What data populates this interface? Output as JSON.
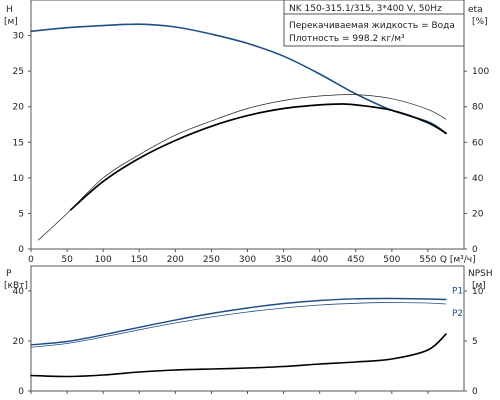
{
  "header": {
    "title": "NK 150-315.1/315, 3*400 V, 50Hz",
    "liquid": "Перекачиваемая жидкость = Вода",
    "density": "Плотность = 998.2 кг/м³"
  },
  "chart_data": [
    {
      "type": "line",
      "panel": "top",
      "xlabel": "Q [м³/ч]",
      "xlim": [
        0,
        600
      ],
      "x_ticks": [
        0,
        50,
        100,
        150,
        200,
        250,
        300,
        350,
        400,
        450,
        500,
        550
      ],
      "left_axis": {
        "label": "H",
        "unit": "[м]",
        "ylim": [
          0,
          35
        ],
        "ticks": [
          0,
          5,
          10,
          15,
          20,
          25,
          30
        ]
      },
      "right_axis": {
        "label": "eta",
        "unit": "[%]",
        "ylim": [
          0,
          140
        ],
        "ticks": [
          0,
          20,
          40,
          60,
          80,
          100
        ]
      },
      "series": [
        {
          "axis": "left",
          "color": "#1f4f86",
          "width": 1.6,
          "x": [
            0,
            50,
            100,
            150,
            200,
            250,
            300,
            350,
            400,
            450,
            500,
            550,
            575
          ],
          "y": [
            30.6,
            31.1,
            31.4,
            31.6,
            31.2,
            30.2,
            28.9,
            27.1,
            24.6,
            21.8,
            19.5,
            17.9,
            16.3
          ]
        },
        {
          "axis": "right",
          "color": "#000000",
          "width": 1.7,
          "x": [
            55,
            100,
            150,
            200,
            250,
            300,
            350,
            400,
            430,
            450,
            500,
            550,
            575
          ],
          "y": [
            22,
            38,
            51,
            61,
            69,
            75,
            79,
            81,
            81.5,
            81,
            78,
            71,
            65
          ]
        },
        {
          "axis": "right",
          "color": "#222222",
          "width": 0.7,
          "x": [
            10,
            50,
            100,
            150,
            200,
            250,
            300,
            350,
            400,
            450,
            500,
            550,
            575
          ],
          "y": [
            5,
            20,
            40,
            53,
            64,
            72,
            79,
            83.5,
            86,
            86.8,
            84.5,
            78.5,
            73
          ]
        }
      ]
    },
    {
      "type": "line",
      "panel": "bottom",
      "xlim": [
        0,
        600
      ],
      "left_axis": {
        "label": "P",
        "unit": "[кВт]",
        "ylim": [
          0,
          50
        ],
        "ticks": [
          0,
          20,
          40
        ]
      },
      "right_axis": {
        "label": "NPSH",
        "unit": "[м]",
        "ylim": [
          0,
          12.5
        ],
        "ticks": [
          0,
          5,
          10
        ]
      },
      "series": [
        {
          "name": "P1",
          "axis": "left",
          "color": "#1f4f86",
          "width": 1.4,
          "x": [
            0,
            50,
            100,
            150,
            200,
            250,
            300,
            350,
            400,
            450,
            500,
            550,
            575
          ],
          "y": [
            18.5,
            19.8,
            22.5,
            25.5,
            28.4,
            31,
            33.2,
            35,
            36.2,
            36.9,
            37,
            36.8,
            36.6
          ]
        },
        {
          "name": "P2",
          "axis": "left",
          "color": "#1f4f86",
          "width": 0.8,
          "x": [
            0,
            50,
            100,
            150,
            200,
            250,
            300,
            350,
            400,
            450,
            500,
            550,
            575
          ],
          "y": [
            17.5,
            19,
            21.6,
            24.5,
            27.2,
            29.6,
            31.6,
            33.2,
            34.4,
            35.1,
            35.4,
            35.2,
            34.8
          ]
        },
        {
          "axis": "right",
          "color": "#000000",
          "width": 1.6,
          "x": [
            0,
            50,
            100,
            150,
            200,
            250,
            300,
            350,
            400,
            450,
            500,
            550,
            575
          ],
          "y": [
            1.55,
            1.45,
            1.6,
            1.9,
            2.1,
            2.2,
            2.3,
            2.45,
            2.7,
            2.9,
            3.2,
            4.1,
            5.7
          ]
        }
      ]
    }
  ]
}
